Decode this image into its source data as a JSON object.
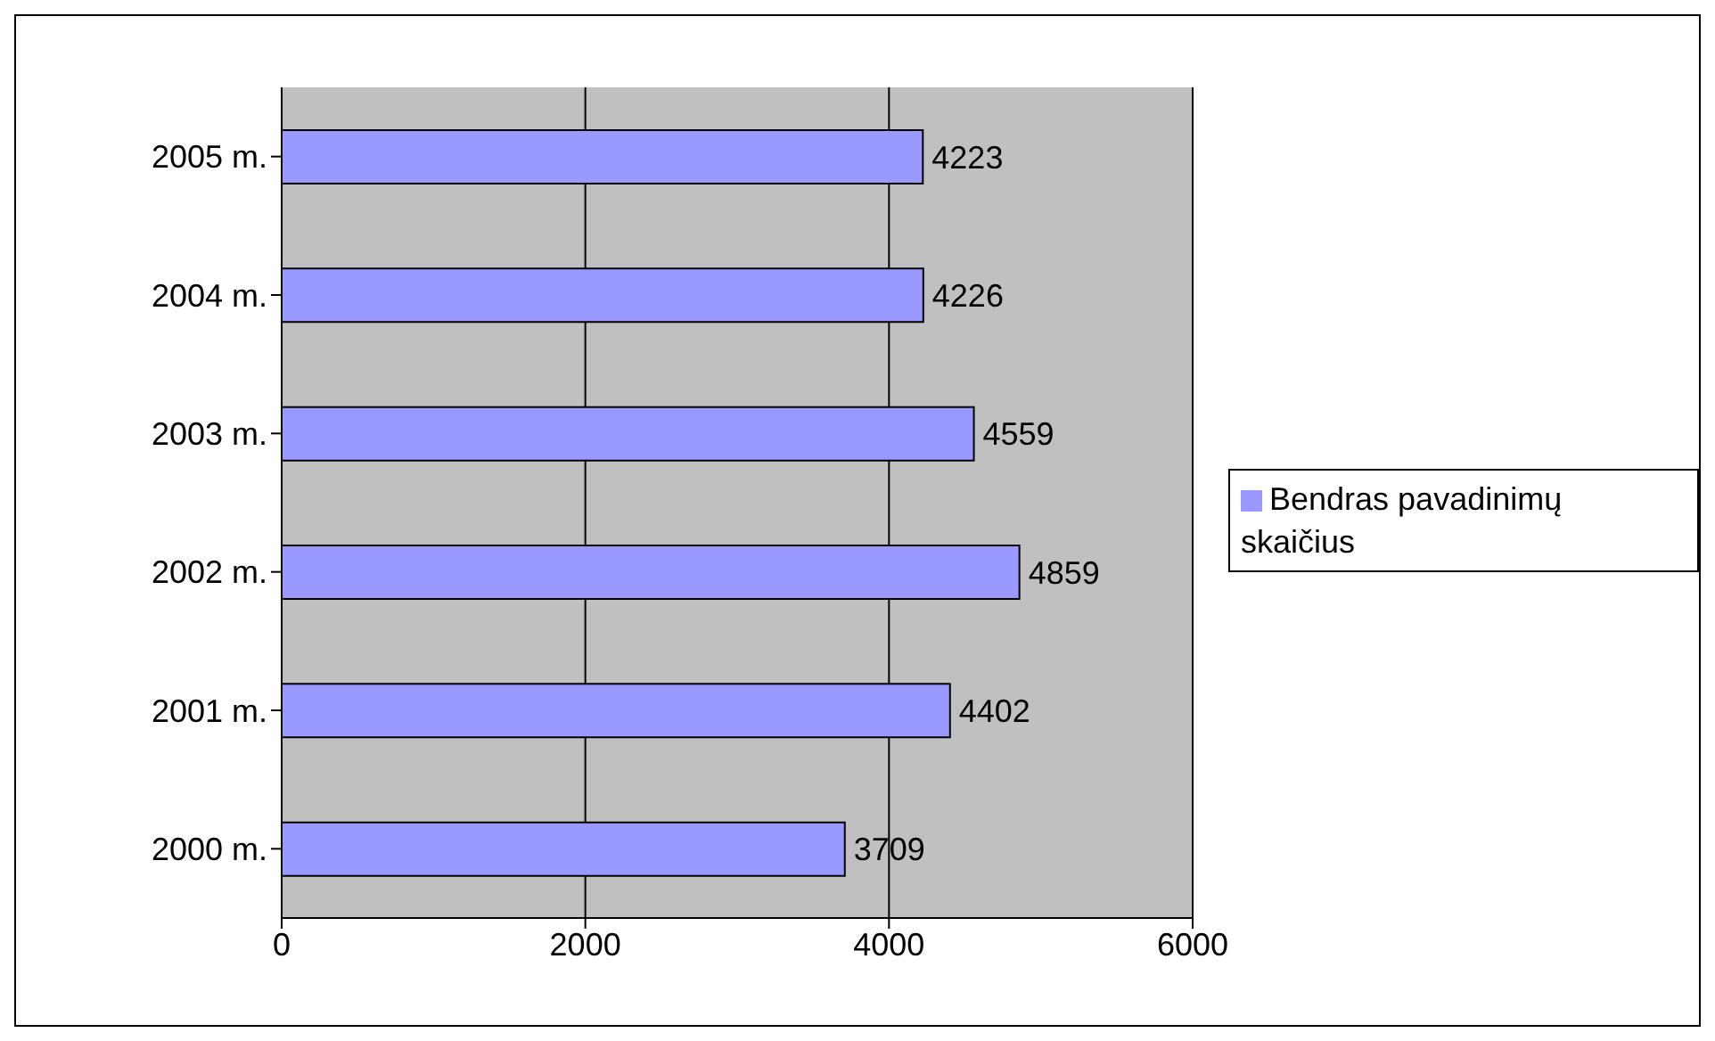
{
  "chart_data": {
    "type": "bar",
    "orientation": "horizontal",
    "categories": [
      "2005 m.",
      "2004 m.",
      "2003 m.",
      "2002 m.",
      "2001 m.",
      "2000 m."
    ],
    "series": [
      {
        "name": "Bendras pavadinimų skaičius",
        "color": "#9999ff",
        "values": [
          4223,
          4226,
          4559,
          4859,
          4402,
          3709
        ]
      }
    ],
    "xlim": [
      0,
      6000
    ],
    "xticks": [
      0,
      2000,
      4000,
      6000
    ],
    "grid": "x",
    "legend": "right",
    "data_labels": true
  }
}
